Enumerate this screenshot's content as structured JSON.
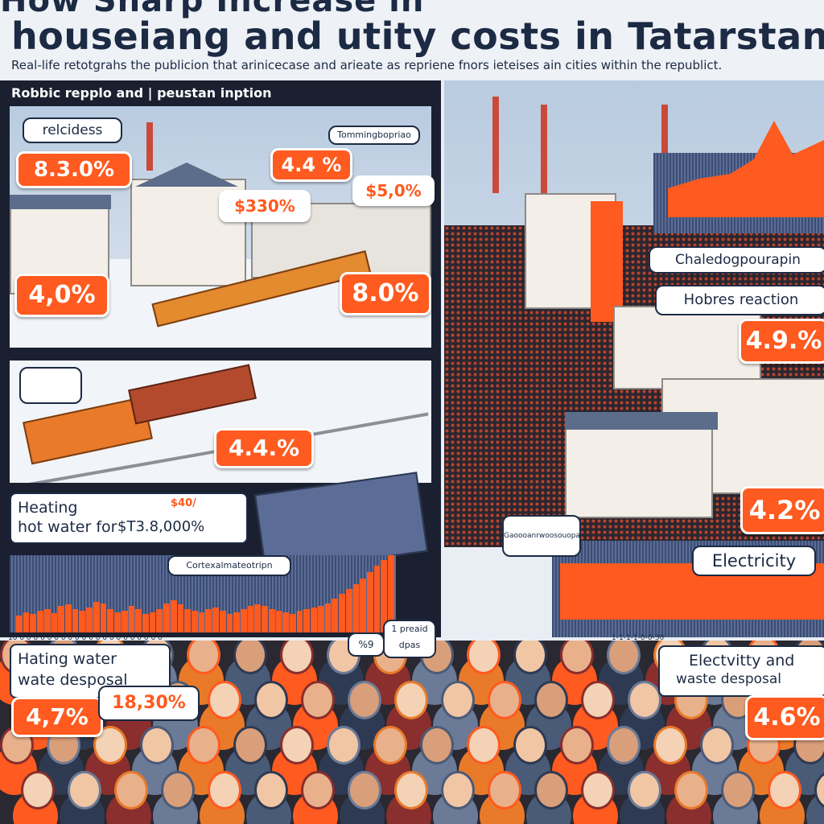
{
  "header": {
    "title_top": "How       Sharp Increase in",
    "title": "houseiang and utity costs in Tatarstann",
    "subtitle": "Real-life retotgrahs the publicion that arinicecase and arieate as repriene fnors ieteises ain cities within the republict."
  },
  "left_panel": {
    "heading": "Robbic repplo and | peustan inption",
    "tags": {
      "top_left": "relcidess",
      "top_right": "Tommingbopriao"
    },
    "badges": {
      "b1": "8.3.0%",
      "b2": "4.4 %",
      "b3": "$330%",
      "b4": "$5,0%",
      "b5": "4,0%",
      "b6": "8.0%",
      "b7": "4.4.%"
    }
  },
  "heating_card": {
    "line1": "Heating",
    "line2": "hot water for",
    "value_top": "$40/",
    "value": "$T3.8,000%"
  },
  "left_chart": {
    "label": "Cortexalmateotripn",
    "axis": "10 0 0 0 0 0 0 0 0 0 0 0 0 0 0 0 0 0 0 0 0 0",
    "values": [
      22,
      26,
      24,
      28,
      30,
      25,
      34,
      36,
      30,
      28,
      32,
      40,
      38,
      30,
      26,
      28,
      34,
      30,
      24,
      26,
      30,
      38,
      42,
      36,
      30,
      28,
      26,
      30,
      32,
      28,
      24,
      26,
      30,
      34,
      36,
      34,
      30,
      28,
      26,
      24,
      28,
      30,
      32,
      34,
      38,
      44,
      50,
      56,
      62,
      70,
      78,
      86,
      94,
      100
    ]
  },
  "bottom_left_card": {
    "line1": "Hating water",
    "line2": "wate desposal",
    "badge": "4,7%",
    "badge2": "18,30%"
  },
  "right_panel": {
    "tag1": "Chaledogpourapin",
    "tag2": "Hobres reaction",
    "badge1": "4.9.%",
    "badge2": "4.2%",
    "electricity_label": "Electricity",
    "mid_tag": "Gaoooanrwoosouopao",
    "small_tag": "1 preaid dpas",
    "small_tag_prefix": "%9",
    "card_line1": "Electvitty and",
    "card_line2": "waste desposal",
    "card_badge": "4.6%",
    "axis": "1-1-1-1-0-0-30"
  },
  "colors": {
    "accent": "#ff5a1f",
    "navy": "#1c2a44",
    "panel": "#1a2030"
  }
}
